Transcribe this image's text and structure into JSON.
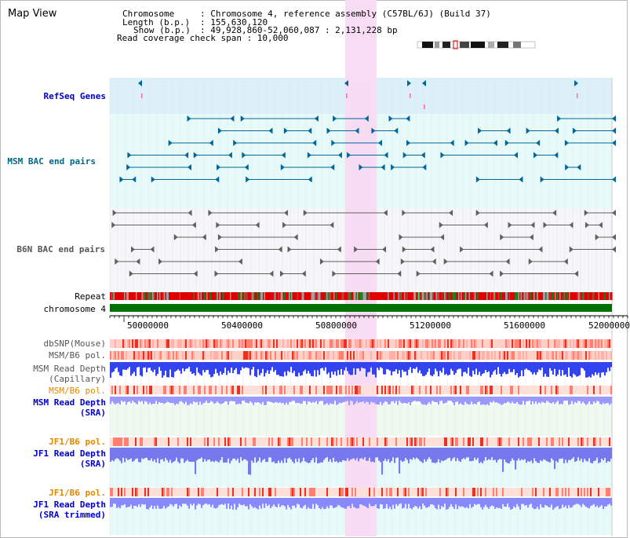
{
  "title": "Map View",
  "info": {
    "chromosome_key": "Chromosome",
    "chromosome_val": ": Chromosome 4, reference assembly (C57BL/6J) (Build 37)",
    "length_key": "Length (b.p.)",
    "length_val": ": 155,630,120",
    "show_key": "Show (b.p.)",
    "show_val": ": 49,928,860-52,060,087 : 2,131,228 bp",
    "coverage": "Read coverage check span : 10,000"
  },
  "tracks": {
    "refseq": "RefSeq Genes",
    "msm_bac": "MSM BAC end pairs",
    "b6n_bac": "B6N BAC end pairs",
    "repeat": "Repeat",
    "chromosome": "chromosome 4",
    "dbsnp": "dbSNP(Mouse)",
    "msm_b6_pol_1": "MSM/B6 pol.",
    "msm_read_depth_cap_1": "MSM Read Depth",
    "msm_read_depth_cap_2": "(Capillary)",
    "msm_b6_pol_2": "MSM/B6 pol.",
    "msm_read_depth_sra_1": "MSM Read Depth",
    "msm_read_depth_sra_2": "(SRA)",
    "jf1_b6_pol_1": "JF1/B6 pol.",
    "jf1_read_depth_sra_1": "JF1 Read Depth",
    "jf1_read_depth_sra_2": "(SRA)",
    "jf1_b6_pol_2": "JF1/B6 pol.",
    "jf1_read_depth_trim_1": "JF1 Read Depth",
    "jf1_read_depth_trim_2": "(SRA trimmed)"
  },
  "axis_ticks": [
    "50000000",
    "50400000",
    "50800000",
    "51200000",
    "51600000",
    "52000000"
  ],
  "colors": {
    "refseq_bg": "#dcf0fa",
    "msm_bg": "#e6fafa",
    "highlight": "#f8dcf4",
    "msm_gene": "#006699",
    "b6n_gene": "#606060",
    "chromosome": "#007000",
    "label_blue": "#0000cc",
    "label_teal": "#006688",
    "label_orange": "#e08800",
    "label_gray": "#555555"
  }
}
